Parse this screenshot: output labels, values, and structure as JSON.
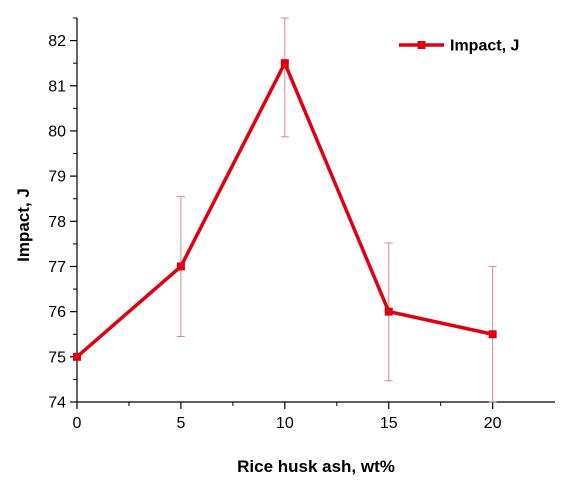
{
  "chart_data": {
    "type": "line",
    "xlabel": "Rice husk ash, wt%",
    "ylabel": "Impact, J",
    "xlim": [
      0,
      23
    ],
    "ylim": [
      74,
      82.5
    ],
    "x_ticks": [
      0,
      5,
      10,
      15,
      20
    ],
    "y_ticks": [
      74,
      75,
      76,
      77,
      78,
      79,
      80,
      81,
      82
    ],
    "grid": false,
    "legend_position": "top-right",
    "series": [
      {
        "name": "Impact, J",
        "color": "#e0000f",
        "marker": "square",
        "x": [
          0,
          5,
          10,
          15,
          20
        ],
        "y": [
          75,
          77,
          81.5,
          76,
          75.5
        ],
        "error": [
          [
            75,
            75
          ],
          [
            75.45,
            78.55
          ],
          [
            79.87,
            82.5
          ],
          [
            74.47,
            77.52
          ],
          [
            74,
            77
          ]
        ]
      }
    ],
    "error_bar_color": "#d88890"
  }
}
